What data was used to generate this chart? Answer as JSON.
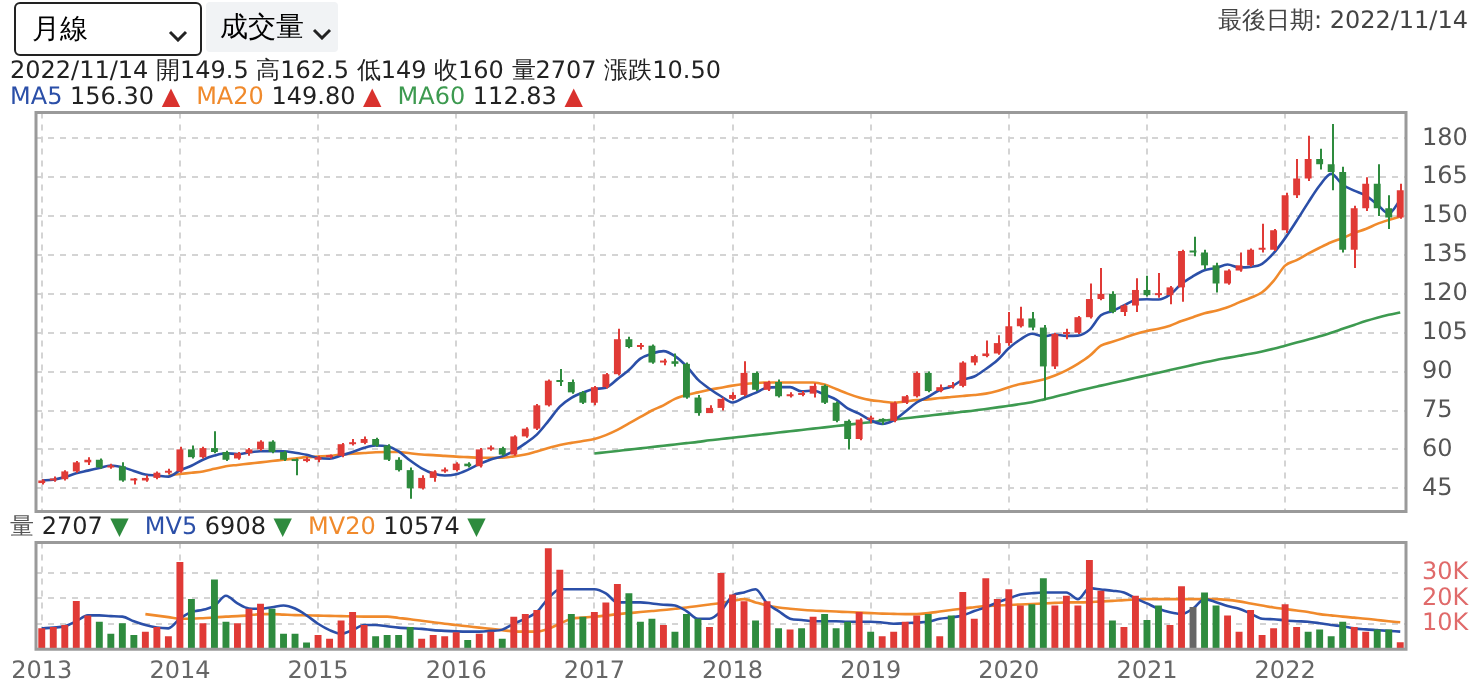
{
  "chart_data": [
    {
      "type": "candlestick",
      "subtitle": "2022/11/14 開149.5 高162.5 低149 收160 量2707 漲跌10.50",
      "annotations": [
        "月線",
        "成交量",
        "最後日期: 2022/11/14"
      ],
      "categories": [
        "2013",
        null,
        null,
        null,
        null,
        null,
        null,
        null,
        null,
        null,
        null,
        null,
        "2014",
        null,
        null,
        null,
        null,
        null,
        null,
        null,
        null,
        null,
        null,
        null,
        "2015",
        null,
        null,
        null,
        null,
        null,
        null,
        null,
        null,
        null,
        null,
        null,
        "2016",
        null,
        null,
        null,
        null,
        null,
        null,
        null,
        null,
        null,
        null,
        null,
        "2017",
        null,
        null,
        null,
        null,
        null,
        null,
        null,
        null,
        null,
        null,
        null,
        "2018",
        null,
        null,
        null,
        null,
        null,
        null,
        null,
        null,
        null,
        null,
        null,
        "2019",
        null,
        null,
        null,
        null,
        null,
        null,
        null,
        null,
        null,
        null,
        null,
        "2020",
        null,
        null,
        null,
        null,
        null,
        null,
        null,
        null,
        null,
        null,
        null,
        "2021",
        null,
        null,
        null,
        null,
        null,
        null,
        null,
        null,
        null,
        null,
        null,
        "2022",
        null,
        null,
        null,
        null,
        null,
        null,
        null,
        null,
        null,
        null
      ],
      "ohlc": [
        [
          47,
          48.5,
          46.5,
          48
        ],
        [
          48,
          49.5,
          47.5,
          48.5
        ],
        [
          48.5,
          52,
          48,
          51.5
        ],
        [
          51.5,
          55.5,
          51,
          55
        ],
        [
          55,
          57,
          54,
          56
        ],
        [
          56,
          56.5,
          52.5,
          53
        ],
        [
          53,
          54.5,
          52.5,
          53.5
        ],
        [
          53.5,
          55,
          47.5,
          48
        ],
        [
          48,
          49,
          46.5,
          48
        ],
        [
          48,
          50,
          47.5,
          49
        ],
        [
          49,
          51.5,
          48.5,
          51
        ],
        [
          51,
          52.5,
          50.5,
          51.5
        ],
        [
          51.5,
          61,
          51,
          60
        ],
        [
          60,
          61.5,
          56.5,
          57
        ],
        [
          57,
          61,
          56.5,
          60.5
        ],
        [
          60.5,
          67,
          58.5,
          59
        ],
        [
          59,
          59.5,
          55.5,
          56
        ],
        [
          56.5,
          59,
          56,
          58.5
        ],
        [
          58.5,
          60.5,
          57.5,
          60
        ],
        [
          60,
          63.5,
          59.5,
          63
        ],
        [
          63,
          63.5,
          58.5,
          59
        ],
        [
          59,
          59.5,
          55.5,
          56
        ],
        [
          56,
          56.5,
          50,
          55.5
        ],
        [
          55.5,
          57,
          55,
          56
        ],
        [
          56,
          57.5,
          55,
          57
        ],
        [
          57,
          58,
          56.5,
          57.5
        ],
        [
          57.5,
          62.5,
          57,
          62
        ],
        [
          62,
          64,
          61.5,
          62.5
        ],
        [
          62.5,
          65,
          62,
          64
        ],
        [
          64,
          64.5,
          61,
          61.5
        ],
        [
          61.5,
          62,
          55.5,
          56
        ],
        [
          56,
          57,
          51.5,
          52
        ],
        [
          52,
          53,
          41,
          45
        ],
        [
          45,
          50,
          44.5,
          49
        ],
        [
          49,
          52,
          47.5,
          51.5
        ],
        [
          51.5,
          53,
          51,
          52
        ],
        [
          52,
          55,
          51.5,
          54.5
        ],
        [
          54.5,
          55,
          53,
          53.5
        ],
        [
          53.5,
          60.5,
          53,
          60
        ],
        [
          60,
          61.5,
          59.5,
          60.5
        ],
        [
          60.5,
          61,
          57.5,
          58
        ],
        [
          58,
          65.5,
          57.5,
          65
        ],
        [
          65,
          68.5,
          64.5,
          68
        ],
        [
          68,
          77.5,
          67.5,
          77
        ],
        [
          77,
          87,
          76.5,
          86.5
        ],
        [
          86.5,
          91,
          84.5,
          86
        ],
        [
          86,
          87,
          81.5,
          82
        ],
        [
          82,
          82.5,
          77.5,
          78
        ],
        [
          78,
          84.5,
          77,
          84
        ],
        [
          84,
          89.5,
          83.5,
          89
        ],
        [
          89,
          106.5,
          88.5,
          102.5
        ],
        [
          102.5,
          103.5,
          99,
          99.5
        ],
        [
          99.5,
          101,
          98.5,
          100
        ],
        [
          100,
          100.5,
          93,
          93.5
        ],
        [
          93.5,
          95,
          92.5,
          94
        ],
        [
          94,
          97,
          92,
          93
        ],
        [
          93,
          93.5,
          79.5,
          80
        ],
        [
          80,
          81,
          73,
          74
        ],
        [
          74,
          77,
          74,
          76
        ],
        [
          76,
          80,
          75,
          79.5
        ],
        [
          79.5,
          82,
          79,
          81
        ],
        [
          81,
          94,
          80.5,
          89.5
        ],
        [
          89.5,
          90,
          82.5,
          83
        ],
        [
          83,
          86.5,
          82.5,
          86
        ],
        [
          86,
          87,
          80,
          80.5
        ],
        [
          80.5,
          82,
          80,
          81
        ],
        [
          81,
          82.5,
          80.5,
          81.5
        ],
        [
          81.5,
          85.5,
          80,
          84.5
        ],
        [
          84.5,
          85,
          77.5,
          78
        ],
        [
          78,
          78.5,
          70.5,
          71
        ],
        [
          71,
          71.5,
          60,
          64
        ],
        [
          64,
          72,
          63.5,
          71.5
        ],
        [
          71.5,
          73,
          70,
          71.5
        ],
        [
          71.5,
          72,
          69.5,
          71
        ],
        [
          71,
          78.5,
          70.5,
          78
        ],
        [
          78,
          81,
          77.5,
          80.5
        ],
        [
          80.5,
          90,
          80,
          89.5
        ],
        [
          89.5,
          90,
          82,
          82.5
        ],
        [
          82.5,
          85,
          82,
          84
        ],
        [
          84,
          86,
          83.5,
          84.5
        ],
        [
          84.5,
          94,
          84,
          93.5
        ],
        [
          93.5,
          96.5,
          92.5,
          96
        ],
        [
          96,
          102,
          95.5,
          97
        ],
        [
          97,
          104,
          96.5,
          101
        ],
        [
          101,
          113,
          100,
          107.5
        ],
        [
          107.5,
          115,
          107,
          110.5
        ],
        [
          110.5,
          113,
          106,
          107
        ],
        [
          107,
          108,
          79,
          92
        ],
        [
          92,
          105,
          91,
          104.5
        ],
        [
          104.5,
          106.5,
          102.5,
          105
        ],
        [
          105,
          111.5,
          104.5,
          111
        ],
        [
          111,
          124,
          110.5,
          118
        ],
        [
          118,
          130,
          117.5,
          120
        ],
        [
          120,
          121,
          112.5,
          113
        ],
        [
          113,
          116,
          111.5,
          115.5
        ],
        [
          115.5,
          126,
          113,
          121.5
        ],
        [
          121.5,
          127,
          119,
          119.5
        ],
        [
          119.5,
          128,
          118.5,
          119.5
        ],
        [
          119.5,
          123,
          116,
          122.5
        ],
        [
          122.5,
          137,
          117,
          136.5
        ],
        [
          136.5,
          142,
          134.5,
          136
        ],
        [
          136,
          137,
          129.5,
          131
        ],
        [
          131,
          132,
          120.5,
          124
        ],
        [
          124,
          129.5,
          123.5,
          129
        ],
        [
          129,
          136,
          128.5,
          131
        ],
        [
          131,
          137.5,
          130.5,
          137
        ],
        [
          137,
          147,
          136,
          137
        ],
        [
          137,
          145,
          136.5,
          144.5
        ],
        [
          144.5,
          159,
          143.5,
          158
        ],
        [
          158,
          172,
          157,
          164.5
        ],
        [
          164.5,
          181,
          163.5,
          172
        ],
        [
          172,
          176,
          168,
          170
        ],
        [
          170,
          185.5,
          160,
          167
        ],
        [
          167,
          169,
          136,
          137
        ],
        [
          137,
          154,
          130,
          153
        ],
        [
          153,
          165,
          152,
          162.5
        ],
        [
          162.5,
          170,
          150,
          153
        ],
        [
          153,
          158,
          145,
          149.5
        ],
        [
          149.5,
          162.5,
          149,
          160
        ]
      ],
      "series": [
        {
          "name": "MA5 156.30 ▲",
          "type": "line",
          "color": "#2b4fa8",
          "values": [
            48,
            48.3,
            49.3,
            50.8,
            51.8,
            52.8,
            53.8,
            53.1,
            51.7,
            50.3,
            49.9,
            49.5,
            51.9,
            53.7,
            56,
            57.6,
            58.5,
            58.2,
            58.8,
            59.3,
            59.3,
            59.3,
            58.7,
            57.9,
            56.7,
            56.4,
            57.6,
            59,
            60.6,
            61.5,
            61.2,
            59.2,
            55.7,
            52.7,
            50.7,
            49.9,
            50.4,
            52.1,
            54.3,
            56.1,
            57.3,
            59.4,
            62.3,
            65.7,
            70.9,
            76.5,
            79.9,
            81.9,
            83.3,
            83.8,
            87.1,
            90.6,
            95,
            96.9,
            97.9,
            96,
            92.1,
            86.9,
            83.4,
            80.5,
            78.1,
            80,
            81.8,
            83.8,
            84,
            84,
            82.4,
            82.7,
            81.1,
            79.2,
            75.8,
            73.8,
            71.2,
            69.8,
            71.2,
            74.5,
            78.1,
            80.3,
            82.9,
            84.2,
            86.8,
            88.1,
            91,
            94.4,
            99,
            102.4,
            104.6,
            103.6,
            104.3,
            103.8,
            103.9,
            106.1,
            111.7,
            113.4,
            115.5,
            117.6,
            117.9,
            117.8,
            119.7,
            123.9,
            126.8,
            129.1,
            130,
            131.3,
            130.2,
            130.4,
            131.6,
            135.7,
            141.5,
            148.2,
            155.2,
            161.8,
            166.3,
            162.1,
            159.8,
            157.9,
            154.5,
            151,
            156.3
          ]
        },
        {
          "name": "MA20 149.80 ▲",
          "type": "line",
          "color": "#f08a2c",
          "values": [
            null,
            null,
            null,
            null,
            null,
            null,
            null,
            null,
            null,
            null,
            null,
            50,
            50.5,
            51,
            51.5,
            52.5,
            53.5,
            54,
            54.5,
            55,
            55.5,
            56,
            56.5,
            57,
            57.2,
            57.5,
            58,
            58.3,
            58.6,
            58.9,
            59,
            59,
            58.5,
            58,
            57.8,
            57.5,
            57.2,
            57,
            56.8,
            56.8,
            56.8,
            57.3,
            58,
            59.2,
            60.5,
            61.7,
            62.5,
            63.2,
            64,
            65.5,
            67.5,
            70,
            72.5,
            75,
            77,
            79.5,
            81,
            82,
            83,
            83.8,
            84.6,
            85.2,
            85.6,
            85.8,
            85.8,
            85.8,
            85.8,
            85.8,
            85,
            83.3,
            81.5,
            80,
            79,
            78.5,
            78,
            78.5,
            79,
            79.3,
            79.8,
            80.2,
            80.6,
            81,
            81.5,
            82.5,
            84,
            85.2,
            86,
            87,
            88.5,
            90.5,
            93,
            96,
            100,
            101.5,
            103,
            104.5,
            105.7,
            106.5,
            107.7,
            109.5,
            111,
            112.5,
            113.5,
            114.8,
            116.7,
            118.5,
            120.6,
            125,
            130.9,
            133,
            135.5,
            137.8,
            139.9,
            141.5,
            143.5,
            145,
            147,
            148.5,
            149.8
          ]
        },
        {
          "name": "MA60 112.83 ▲",
          "type": "line",
          "color": "#3d9a50",
          "values": [
            null,
            null,
            null,
            null,
            null,
            null,
            null,
            null,
            null,
            null,
            null,
            null,
            null,
            null,
            null,
            null,
            null,
            null,
            null,
            null,
            null,
            null,
            null,
            null,
            null,
            null,
            null,
            null,
            null,
            null,
            null,
            null,
            null,
            null,
            null,
            null,
            null,
            null,
            null,
            null,
            null,
            null,
            null,
            null,
            null,
            null,
            null,
            null,
            58.4,
            58.9,
            59.4,
            59.9,
            60.4,
            60.9,
            61.4,
            61.9,
            62.4,
            62.9,
            63.5,
            64,
            64.5,
            65,
            65.5,
            66,
            66.5,
            67,
            67.5,
            68,
            68.5,
            69,
            69.5,
            70,
            70.5,
            71,
            71.5,
            72,
            72.5,
            73,
            73.5,
            74,
            74.5,
            75,
            75.6,
            76.2,
            76.8,
            77.5,
            78.2,
            79.2,
            80.3,
            81.4,
            82.5,
            83.6,
            84.6,
            85.6,
            86.6,
            87.6,
            88.6,
            89.6,
            90.6,
            91.6,
            92.6,
            93.6,
            94.5,
            95.3,
            96.1,
            96.9,
            97.8,
            98.8,
            100,
            101.2,
            102.4,
            103.6,
            105,
            106.5,
            108,
            109.5,
            110.8,
            111.9,
            112.83
          ]
        }
      ],
      "ylim": [
        36,
        190
      ],
      "yticks": [
        45,
        60,
        75,
        90,
        105,
        120,
        135,
        150,
        165,
        180
      ],
      "grid": true,
      "legend": "top left",
      "tick_labels": "y",
      "marker": "none"
    },
    {
      "type": "bar",
      "categories": [
        "2013",
        null,
        null,
        null,
        null,
        null,
        null,
        null,
        null,
        null,
        null,
        null,
        "2014",
        null,
        null,
        null,
        null,
        null,
        null,
        null,
        null,
        null,
        null,
        null,
        "2015",
        null,
        null,
        null,
        null,
        null,
        null,
        null,
        null,
        null,
        null,
        null,
        "2016",
        null,
        null,
        null,
        null,
        null,
        null,
        null,
        null,
        null,
        null,
        null,
        "2017",
        null,
        null,
        null,
        null,
        null,
        null,
        null,
        null,
        null,
        null,
        null,
        "2018",
        null,
        null,
        null,
        null,
        null,
        null,
        null,
        null,
        null,
        null,
        null,
        "2019",
        null,
        null,
        null,
        null,
        null,
        null,
        null,
        null,
        null,
        null,
        null,
        "2020",
        null,
        null,
        null,
        null,
        null,
        null,
        null,
        null,
        null,
        null,
        null,
        "2021",
        null,
        null,
        null,
        null,
        null,
        null,
        null,
        null,
        null,
        null,
        null,
        "2022",
        null,
        null,
        null,
        null,
        null,
        null,
        null,
        null,
        null,
        null
      ],
      "series": [
        {
          "name": "量 2707 ▼",
          "colors": [
            "#e03a36",
            "#e03a36",
            "#e03a36",
            "#e03a36",
            "#e03a36",
            "#2e8b3e",
            "#2e8b3e",
            "#2e8b3e",
            "#2e8b3e",
            "#e03a36",
            "#e03a36",
            "#e03a36",
            "#e03a36",
            "#2e8b3e",
            "#e03a36",
            "#2e8b3e",
            "#2e8b3e",
            "#e03a36",
            "#e03a36",
            "#e03a36",
            "#2e8b3e",
            "#2e8b3e",
            "#2e8b3e",
            "#2e8b3e",
            "#e03a36",
            "#e03a36",
            "#e03a36",
            "#e03a36",
            "#e03a36",
            "#2e8b3e",
            "#2e8b3e",
            "#2e8b3e",
            "#2e8b3e",
            "#e03a36",
            "#e03a36",
            "#e03a36",
            "#e03a36",
            "#2e8b3e",
            "#e03a36",
            "#e03a36",
            "#2e8b3e",
            "#e03a36",
            "#e03a36",
            "#e03a36",
            "#e03a36",
            "#e03a36",
            "#2e8b3e",
            "#2e8b3e",
            "#e03a36",
            "#e03a36",
            "#e03a36",
            "#2e8b3e",
            "#2e8b3e",
            "#2e8b3e",
            "#e03a36",
            "#2e8b3e",
            "#2e8b3e",
            "#2e8b3e",
            "#e03a36",
            "#e03a36",
            "#e03a36",
            "#e03a36",
            "#2e8b3e",
            "#e03a36",
            "#2e8b3e",
            "#e03a36",
            "#2e8b3e",
            "#e03a36",
            "#2e8b3e",
            "#2e8b3e",
            "#2e8b3e",
            "#e03a36",
            "#2e8b3e",
            "#e03a36",
            "#e03a36",
            "#e03a36",
            "#e03a36",
            "#2e8b3e",
            "#e03a36",
            "#2e8b3e",
            "#e03a36",
            "#e03a36",
            "#e03a36",
            "#e03a36",
            "#e03a36",
            "#e03a36",
            "#2e8b3e",
            "#2e8b3e",
            "#e03a36",
            "#e03a36",
            "#e03a36",
            "#e03a36",
            "#e03a36",
            "#2e8b3e",
            "#e03a36",
            "#e03a36",
            "#2e8b3e",
            "#2e8b3e",
            "#e03a36",
            "#e03a36",
            "#666666",
            "#2e8b3e",
            "#2e8b3e",
            "#e03a36",
            "#e03a36",
            "#e03a36",
            "#e03a36",
            "#e03a36",
            "#e03a36",
            "#e03a36",
            "#2e8b3e",
            "#2e8b3e",
            "#2e8b3e",
            "#2e8b3e",
            "#e03a36",
            "#e03a36",
            "#2e8b3e",
            "#2e8b3e",
            "#e03a36"
          ],
          "values": [
            8200,
            8700,
            9500,
            19000,
            13300,
            10800,
            6100,
            10200,
            5600,
            6900,
            8700,
            5100,
            34300,
            19700,
            10200,
            27400,
            10800,
            10200,
            15900,
            17900,
            15900,
            6100,
            6100,
            2600,
            5600,
            4100,
            11300,
            14600,
            9500,
            5100,
            5600,
            5600,
            8700,
            4100,
            5600,
            5100,
            6700,
            3600,
            6100,
            6900,
            4100,
            12800,
            13800,
            15400,
            39700,
            31200,
            13800,
            12800,
            14600,
            18400,
            25600,
            22000,
            10800,
            12000,
            9500,
            6900,
            13800,
            12000,
            8700,
            30000,
            21500,
            18900,
            11300,
            18900,
            8200,
            7700,
            8200,
            12800,
            13800,
            8200,
            10800,
            14600,
            6900,
            5100,
            6900,
            10800,
            13300,
            13800,
            5100,
            13300,
            22500,
            12000,
            27900,
            19700,
            23600,
            17200,
            17700,
            27900,
            17200,
            21000,
            17200,
            35100,
            23000,
            11300,
            8700,
            21000,
            11500,
            17200,
            9500,
            24800,
            16600,
            22300,
            17200,
            13300,
            6900,
            15400,
            5600,
            8200,
            17700,
            8700,
            6900,
            7700,
            5100,
            10800,
            8700,
            6900,
            7700,
            7700,
            2707
          ]
        },
        {
          "name": "MV5 6908 ▼",
          "type": "line",
          "color": "#2b4fa8",
          "values": [
            8200,
            8500,
            9000,
            11000,
            13300,
            13300,
            13000,
            12800,
            11000,
            9500,
            8500,
            8200,
            12000,
            14600,
            15500,
            17000,
            21000,
            18000,
            16000,
            15900,
            16500,
            17200,
            16000,
            13300,
            10000,
            7500,
            6100,
            7500,
            9500,
            9500,
            9000,
            8500,
            8200,
            8000,
            7500,
            7200,
            7000,
            6900,
            6900,
            7200,
            7700,
            10000,
            12000,
            14600,
            20000,
            23600,
            23600,
            23600,
            23600,
            22000,
            18400,
            18400,
            18400,
            18000,
            17500,
            17200,
            15000,
            12000,
            12000,
            15000,
            21000,
            22300,
            23600,
            18000,
            15000,
            12000,
            11500,
            11000,
            11000,
            11000,
            10800,
            10800,
            10800,
            10500,
            10000,
            10200,
            10500,
            10800,
            12000,
            12500,
            13300,
            15000,
            16500,
            18400,
            20000,
            21500,
            22000,
            22300,
            22300,
            22300,
            19700,
            24000,
            23500,
            23000,
            22300,
            20000,
            18000,
            15900,
            14500,
            13800,
            16000,
            19700,
            18500,
            17000,
            15900,
            14000,
            12000,
            11800,
            11300,
            11000,
            10800,
            10200,
            9500,
            9000,
            8200,
            7800,
            7500,
            7200,
            6908
          ]
        },
        {
          "name": "MV20 10574 ▼",
          "type": "line",
          "color": "#f08a2c",
          "values": [
            null,
            null,
            null,
            null,
            null,
            null,
            null,
            null,
            null,
            13800,
            13200,
            12600,
            12000,
            12000,
            12200,
            12500,
            12800,
            13000,
            13300,
            13800,
            13800,
            13600,
            13400,
            13300,
            13200,
            13100,
            13000,
            12900,
            12800,
            12800,
            12800,
            12300,
            11800,
            11200,
            10600,
            10000,
            9500,
            9000,
            8500,
            8000,
            7500,
            7000,
            6900,
            6900,
            8000,
            10000,
            12000,
            12400,
            12800,
            13200,
            13800,
            14200,
            14600,
            15000,
            15400,
            15900,
            16400,
            17000,
            17600,
            18200,
            19000,
            19700,
            18400,
            17200,
            16400,
            15900,
            15500,
            15200,
            15000,
            14800,
            14600,
            14400,
            14200,
            14000,
            13900,
            13800,
            13800,
            14200,
            14800,
            15400,
            16000,
            16500,
            17000,
            17200,
            17400,
            17600,
            17800,
            18000,
            18200,
            18400,
            18400,
            18500,
            18800,
            19000,
            19300,
            19500,
            19700,
            19700,
            19700,
            19700,
            19700,
            19700,
            19700,
            19400,
            18800,
            18000,
            17200,
            16400,
            15800,
            15200,
            14600,
            13800,
            13300,
            12800,
            12400,
            12000,
            11500,
            11000,
            10574
          ]
        }
      ],
      "ylim": [
        0,
        42000
      ],
      "yticks": [
        {
          "value": 10000,
          "label": "10K"
        },
        {
          "value": 20000,
          "label": "20K"
        },
        {
          "value": 30000,
          "label": "30K"
        }
      ],
      "grid": true,
      "legend": "top left",
      "marker": "none"
    }
  ]
}
